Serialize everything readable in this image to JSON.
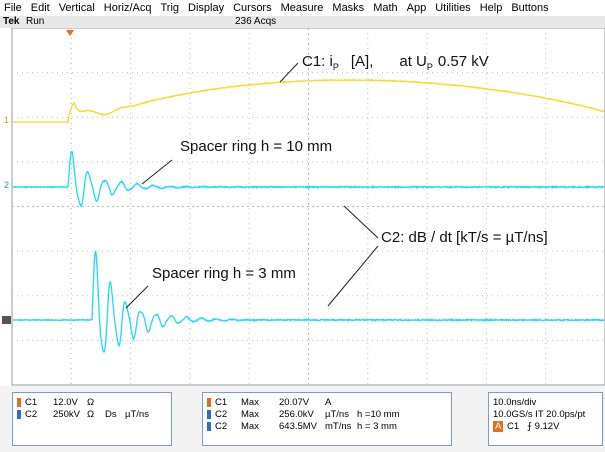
{
  "menu": [
    "File",
    "Edit",
    "Vertical",
    "Horiz/Acq",
    "Trig",
    "Display",
    "Cursors",
    "Measure",
    "Masks",
    "Math",
    "App",
    "Utilities",
    "Help",
    "Buttons"
  ],
  "status": {
    "brand": "Tek",
    "state": "Run",
    "acqs": "236 Acqs"
  },
  "channel_markers": [
    "1",
    "2"
  ],
  "annotations": {
    "c1": {
      "text1": "C1: i",
      "sub1": "P",
      "text2": "[A],",
      "text3": "at U",
      "sub2": "P",
      "text4": "0.57 kV"
    },
    "spacer_10": "Spacer ring h = 10 mm",
    "c2": "C2: dB / dt  [kT/s = µT/ns]",
    "spacer_3": "Spacer ring h = 3 mm"
  },
  "readouts": {
    "vertical": [
      [
        "C1",
        "12.0V",
        "Ω"
      ],
      [
        "C2",
        "250kV",
        "Ω",
        "Ds",
        "µT/ns"
      ]
    ],
    "measurements": [
      [
        "C1",
        "Max",
        "20.07V",
        "A"
      ],
      [
        "C2",
        "Max",
        "256.0kV",
        "µT/ns",
        "h =10 mm"
      ],
      [
        "C2",
        "Max",
        "643.5MV",
        "mT/ns",
        "h = 3 mm"
      ]
    ],
    "timebase": {
      "scale": "10.0ns/div",
      "rate": "10.0GS/s IT 20.0ps/pt",
      "trigger_badge": "A",
      "trigger_source": "C1",
      "trigger_level": "⨍ 9.12V"
    }
  }
}
